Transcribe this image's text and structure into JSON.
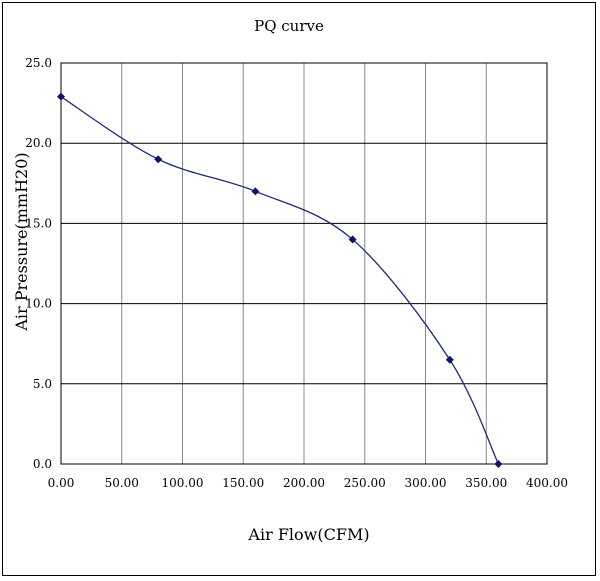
{
  "chart_data": {
    "type": "line",
    "title": "PQ curve",
    "xlabel": "Air Flow(CFM)",
    "ylabel": "Air Pressure(mmH20)",
    "xlim": [
      0,
      400
    ],
    "ylim": [
      0,
      25
    ],
    "xticks": [
      "0.00",
      "50.00",
      "100.00",
      "150.00",
      "200.00",
      "250.00",
      "300.00",
      "350.00",
      "400.00"
    ],
    "yticks": [
      "0.0",
      "5.0",
      "10.0",
      "15.0",
      "20.0",
      "25.0"
    ],
    "grid": true,
    "smooth": true,
    "line_color": "#1f2a7a",
    "marker_color": "#0d1566",
    "series": [
      {
        "x": [
          0,
          80,
          160,
          240,
          320,
          360
        ],
        "y": [
          22.9,
          19.0,
          17.0,
          14.0,
          6.5,
          0.0
        ]
      }
    ]
  }
}
